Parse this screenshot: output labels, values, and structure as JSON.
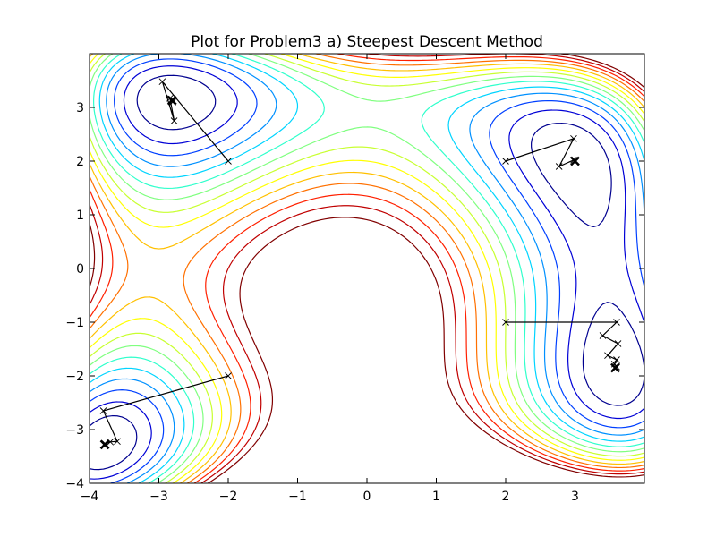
{
  "chart_data": {
    "type": "contour",
    "title": "Plot for Problem3 a) Steepest Descent Method",
    "xlabel": "",
    "ylabel": "",
    "xlim": [
      -4,
      4
    ],
    "ylim": [
      -4,
      4
    ],
    "grid": false,
    "x_ticks": [
      {
        "value": -4,
        "label": "−4"
      },
      {
        "value": -3,
        "label": "−3"
      },
      {
        "value": -2,
        "label": "−2"
      },
      {
        "value": -1,
        "label": "−1"
      },
      {
        "value": 0,
        "label": "0"
      },
      {
        "value": 1,
        "label": "1"
      },
      {
        "value": 2,
        "label": "2"
      },
      {
        "value": 3,
        "label": "3"
      }
    ],
    "y_ticks": [
      {
        "value": -4,
        "label": "−4"
      },
      {
        "value": -3,
        "label": "−3"
      },
      {
        "value": -2,
        "label": "−2"
      },
      {
        "value": -1,
        "label": "−1"
      },
      {
        "value": 0,
        "label": "0"
      },
      {
        "value": 1,
        "label": "1"
      },
      {
        "value": 2,
        "label": "2"
      },
      {
        "value": 3,
        "label": "3"
      }
    ],
    "contour_colormap": [
      "#00008f",
      "#0000d6",
      "#0040ff",
      "#0090ff",
      "#00d4ff",
      "#30ffcc",
      "#80ff80",
      "#c8ff30",
      "#ffff00",
      "#ffc000",
      "#ff7000",
      "#ff2000",
      "#c00000",
      "#800000"
    ],
    "contour_levels": [
      10,
      20,
      30,
      40,
      50,
      60,
      70,
      80,
      90,
      100,
      110,
      120,
      130,
      140
    ],
    "paths": [
      {
        "start": [
          -2,
          2
        ],
        "points": [
          [
            -2,
            2
          ],
          [
            -2.95,
            3.48
          ],
          [
            -2.78,
            2.75
          ],
          [
            -2.84,
            3.17
          ],
          [
            -2.8,
            3.1
          ]
        ],
        "end": [
          -2.81,
          3.13
        ]
      },
      {
        "start": [
          2,
          2
        ],
        "points": [
          [
            2,
            2
          ],
          [
            2.98,
            2.42
          ],
          [
            2.77,
            1.9
          ],
          [
            2.98,
            2.02
          ],
          [
            3.0,
            2.0
          ]
        ],
        "end": [
          3.0,
          2.0
        ]
      },
      {
        "start": [
          2,
          -1
        ],
        "points": [
          [
            2,
            -1
          ],
          [
            3.6,
            -1.0
          ],
          [
            3.4,
            -1.25
          ],
          [
            3.62,
            -1.4
          ],
          [
            3.47,
            -1.62
          ],
          [
            3.6,
            -1.7
          ],
          [
            3.57,
            -1.78
          ],
          [
            3.6,
            -1.83
          ]
        ],
        "end": [
          3.58,
          -1.85
        ]
      },
      {
        "start": [
          -2,
          -2
        ],
        "points": [
          [
            -2,
            -2
          ],
          [
            -3.8,
            -2.65
          ],
          [
            -3.6,
            -3.22
          ],
          [
            -3.7,
            -3.23
          ],
          [
            -3.77,
            -3.27
          ]
        ],
        "end": [
          -3.78,
          -3.28
        ]
      }
    ]
  }
}
